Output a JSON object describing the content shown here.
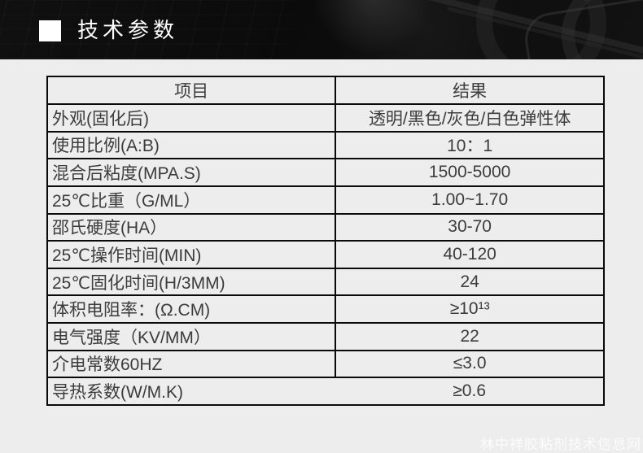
{
  "banner": {
    "title": "技术参数",
    "marker_icon": "white-square-icon",
    "background_color": "#0d0d0d",
    "title_color": "#ffffff"
  },
  "table": {
    "headers": [
      "项目",
      "结果"
    ],
    "rows": [
      {
        "item": "外观(固化后)",
        "value": "透明/黑色/灰色/白色弹性体"
      },
      {
        "item": "使用比例(A:B)",
        "value": "10：1"
      },
      {
        "item": "混合后粘度(MPA.S)",
        "value": "1500-5000"
      },
      {
        "item": "25℃比重（G/ML）",
        "value": "1.00~1.70"
      },
      {
        "item": "邵氏硬度(HA）",
        "value": "30-70"
      },
      {
        "item": "25℃操作时间(MIN)",
        "value": "40-120"
      },
      {
        "item": "25℃固化时间(H/3MM)",
        "value": "24"
      },
      {
        "item": "体积电阻率：(Ω.CM)",
        "value": "≥10¹³"
      },
      {
        "item": "电气强度（KV/MM）",
        "value": "22"
      },
      {
        "item": "介电常数60HZ",
        "value": "≤3.0"
      },
      {
        "item": "导热系数(W/M.K)",
        "value": "≥0.6"
      }
    ],
    "border_color": "#0a0a0a",
    "text_color": "#3c3c3c",
    "background_color": "#ededed"
  },
  "watermark": "林中祥胶粘剂技术信息网"
}
